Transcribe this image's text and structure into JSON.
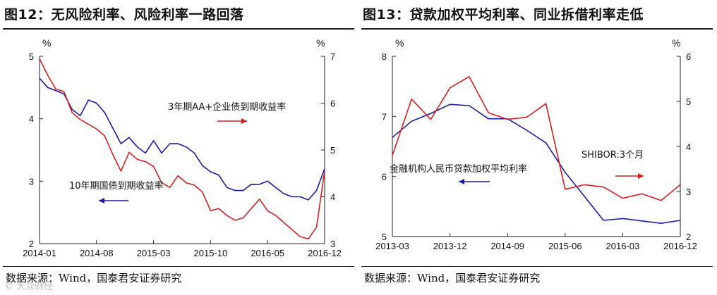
{
  "left": {
    "title": "图12：无风险利率、风险利率一路回落",
    "source": "数据来源：Wind，国泰君安证券研究",
    "watermark": "© 大众财经",
    "chart_data": {
      "type": "line",
      "x_ticks": [
        "2014-01",
        "2014-08",
        "2015-03",
        "2015-10",
        "2016-05",
        "2016-12"
      ],
      "y_left": {
        "unit": "%",
        "range": [
          2,
          5
        ],
        "ticks": [
          "2",
          "3",
          "4",
          "5"
        ]
      },
      "y_right": {
        "unit": "%",
        "range": [
          3,
          7
        ],
        "ticks": [
          "3",
          "4",
          "5",
          "6",
          "7"
        ]
      },
      "series": [
        {
          "name": "10年期国债到期收益率",
          "axis": "left",
          "color": "#1a1aa6",
          "x": [
            "2014-01",
            "2014-02",
            "2014-03",
            "2014-04",
            "2014-05",
            "2014-06",
            "2014-07",
            "2014-08",
            "2014-09",
            "2014-10",
            "2014-11",
            "2014-12",
            "2015-01",
            "2015-02",
            "2015-03",
            "2015-04",
            "2015-05",
            "2015-06",
            "2015-07",
            "2015-08",
            "2015-09",
            "2015-10",
            "2015-11",
            "2015-12",
            "2016-01",
            "2016-02",
            "2016-03",
            "2016-04",
            "2016-05",
            "2016-06",
            "2016-07",
            "2016-08",
            "2016-09",
            "2016-10",
            "2016-11",
            "2016-12"
          ],
          "values": [
            4.65,
            4.5,
            4.45,
            4.4,
            4.15,
            4.05,
            4.3,
            4.25,
            4.1,
            3.85,
            3.6,
            3.7,
            3.55,
            3.45,
            3.65,
            3.45,
            3.6,
            3.6,
            3.55,
            3.45,
            3.25,
            3.15,
            3.1,
            2.9,
            2.85,
            2.85,
            2.95,
            2.95,
            3.0,
            2.9,
            2.8,
            2.75,
            2.75,
            2.7,
            2.85,
            3.2
          ]
        },
        {
          "name": "3年期AA+企业债到期收益率",
          "axis": "right",
          "color": "#d42020",
          "x": [
            "2014-01",
            "2014-02",
            "2014-03",
            "2014-04",
            "2014-05",
            "2014-06",
            "2014-07",
            "2014-08",
            "2014-09",
            "2014-10",
            "2014-11",
            "2014-12",
            "2015-01",
            "2015-02",
            "2015-03",
            "2015-04",
            "2015-05",
            "2015-06",
            "2015-07",
            "2015-08",
            "2015-09",
            "2015-10",
            "2015-11",
            "2015-12",
            "2016-01",
            "2016-02",
            "2016-03",
            "2016-04",
            "2016-05",
            "2016-06",
            "2016-07",
            "2016-08",
            "2016-09",
            "2016-10",
            "2016-11",
            "2016-12"
          ],
          "values": [
            6.95,
            6.6,
            6.3,
            6.25,
            5.8,
            5.65,
            5.55,
            5.45,
            5.3,
            4.9,
            4.55,
            4.95,
            4.8,
            4.75,
            4.65,
            4.3,
            4.2,
            4.45,
            4.3,
            4.25,
            4.1,
            3.7,
            3.75,
            3.6,
            3.5,
            3.55,
            3.75,
            3.95,
            3.7,
            3.6,
            3.45,
            3.3,
            3.15,
            3.1,
            3.35,
            4.55
          ]
        }
      ],
      "annotations": [
        "3年期AA+企业债到期收益率",
        "10年期国债到期收益率"
      ]
    }
  },
  "right": {
    "title": "图13：贷款加权平均利率、同业拆借利率走低",
    "source": "数据来源：Wind，国泰君安证券研究",
    "chart_data": {
      "type": "line",
      "x_ticks": [
        "2013-03",
        "2013-12",
        "2014-09",
        "2015-06",
        "2016-03",
        "2016-12"
      ],
      "y_left": {
        "unit": "%",
        "range": [
          5,
          8
        ],
        "ticks": [
          "5",
          "6",
          "7",
          "8"
        ]
      },
      "y_right": {
        "unit": "%",
        "range": [
          2,
          6
        ],
        "ticks": [
          "2",
          "3",
          "4",
          "5",
          "6"
        ]
      },
      "series": [
        {
          "name": "金融机构人民币贷款加权平均利率",
          "axis": "left",
          "color": "#1a1aa6",
          "x": [
            "2013-03",
            "2013-06",
            "2013-09",
            "2013-12",
            "2014-03",
            "2014-06",
            "2014-09",
            "2014-12",
            "2015-03",
            "2015-06",
            "2015-09",
            "2015-12",
            "2016-03",
            "2016-06",
            "2016-09",
            "2016-12"
          ],
          "values": [
            6.65,
            6.92,
            7.05,
            7.2,
            7.18,
            6.96,
            6.96,
            6.77,
            6.56,
            6.07,
            5.67,
            5.27,
            5.3,
            5.26,
            5.22,
            5.27
          ]
        },
        {
          "name": "SHIBOR:3个月",
          "axis": "right",
          "color": "#d42020",
          "x": [
            "2013-03",
            "2013-06",
            "2013-09",
            "2013-12",
            "2014-03",
            "2014-06",
            "2014-09",
            "2014-12",
            "2015-03",
            "2015-06",
            "2015-09",
            "2015-12",
            "2016-03",
            "2016-06",
            "2016-09",
            "2016-12"
          ],
          "values": [
            3.8,
            5.05,
            4.6,
            5.3,
            5.55,
            4.75,
            4.6,
            4.65,
            4.95,
            3.05,
            3.15,
            3.1,
            2.85,
            2.95,
            2.8,
            3.15
          ]
        }
      ],
      "annotations": [
        "金融机构人民币贷款加权平均利率",
        "SHIBOR:3个月"
      ]
    }
  }
}
